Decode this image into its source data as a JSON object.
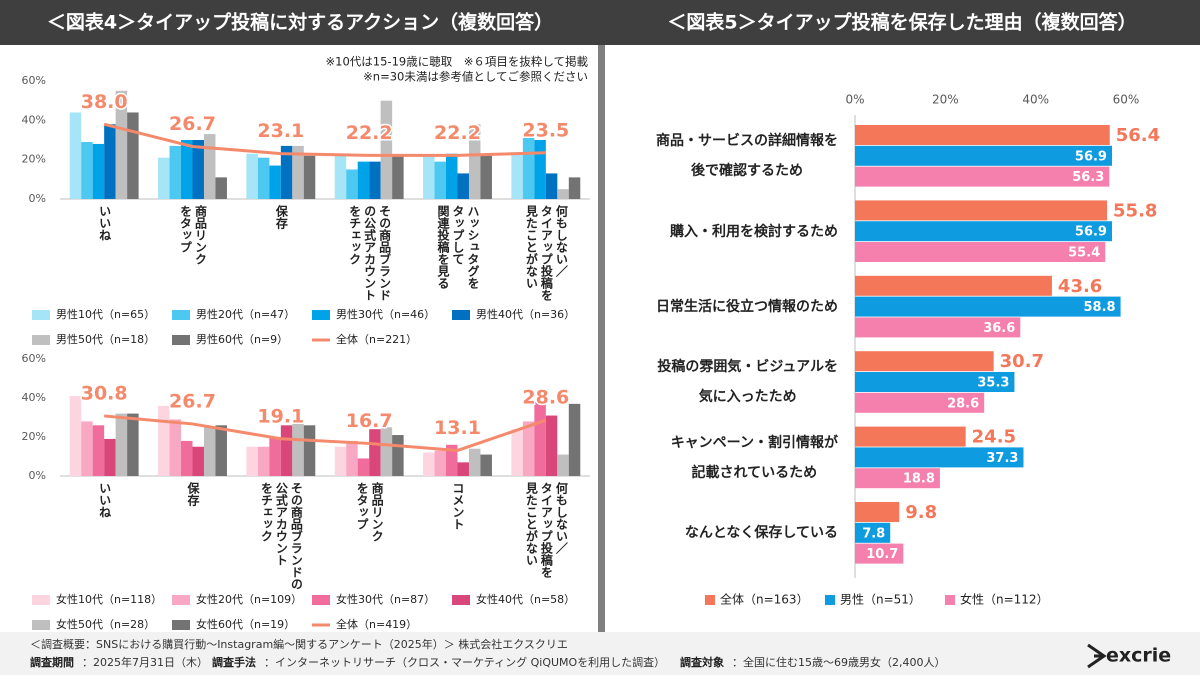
{
  "chart_data": [
    {
      "type": "bar",
      "title": "＜図表4＞タイアップ投稿に対するアクション（複数回答）",
      "notes": [
        "※10代は15-19歳に聴取　※６項目を抜粋して掲載",
        "※n=30未満は参考値としてご参照ください"
      ],
      "categories": [
        "いいね",
        "商品リンク\nをタップ",
        "保存",
        "その商品ブランド\nの公式アカウント\nをチェック",
        "ハッシュタグを\nタップして\n関連投稿を見る",
        "何もしない／\nタイアップ投稿を\n見たことがない"
      ],
      "ylim": [
        0,
        60
      ],
      "yticks": [
        {
          "value": 0,
          "label": "0%"
        },
        {
          "value": 20,
          "label": "20%"
        },
        {
          "value": 40,
          "label": "40%"
        },
        {
          "value": 60,
          "label": "60%"
        }
      ],
      "series": [
        {
          "name": "男性10代（n=65）",
          "color": "#a6e4f7",
          "values": [
            44,
            21,
            23,
            22,
            22,
            23
          ]
        },
        {
          "name": "男性20代（n=47）",
          "color": "#4dc8f0",
          "values": [
            29,
            27,
            21,
            15,
            19,
            33
          ]
        },
        {
          "name": "男性30代（n=46）",
          "color": "#00a2e8",
          "values": [
            28,
            30,
            17,
            19,
            23,
            30
          ]
        },
        {
          "name": "男性40代（n=36）",
          "color": "#0070c0",
          "values": [
            38,
            30,
            27,
            19,
            13,
            13
          ]
        },
        {
          "name": "男性50代（n=18）",
          "color": "#bfbfbf",
          "values": [
            55,
            33,
            27,
            50,
            38,
            5
          ]
        },
        {
          "name": "男性60代（n=9）",
          "color": "#737373",
          "values": [
            44,
            11,
            22,
            22,
            22,
            11
          ]
        },
        {
          "name": "全体（n=221）",
          "color": "#f4896b",
          "type": "line",
          "values": [
            38.0,
            26.7,
            23.1,
            22.2,
            22.2,
            23.5
          ],
          "value_labels": [
            "38.0",
            "26.7",
            "23.1",
            "22.2",
            "22.2",
            "23.5"
          ]
        }
      ]
    },
    {
      "type": "bar",
      "categories": [
        "いいね",
        "保存",
        "その商品ブランドの\n公式アカウント\nをチェック",
        "商品リンク\nをタップ",
        "コメント",
        "何もしない／\nタイアップ投稿を\n見たことがない"
      ],
      "ylim": [
        0,
        60
      ],
      "yticks": [
        {
          "value": 0,
          "label": "0%"
        },
        {
          "value": 20,
          "label": "20%"
        },
        {
          "value": 40,
          "label": "40%"
        },
        {
          "value": 60,
          "label": "60%"
        }
      ],
      "series": [
        {
          "name": "女性10代（n=118）",
          "color": "#fcd5e0",
          "values": [
            41,
            36,
            15,
            15,
            12,
            24
          ]
        },
        {
          "name": "女性20代（n=109）",
          "color": "#f9a8c4",
          "values": [
            28,
            29,
            15,
            18,
            13,
            28
          ]
        },
        {
          "name": "女性30代（n=87）",
          "color": "#f06c9b",
          "values": [
            26,
            18,
            20,
            9,
            16,
            38
          ]
        },
        {
          "name": "女性40代（n=58）",
          "color": "#d9467a",
          "values": [
            19,
            15,
            26,
            24,
            7,
            31
          ]
        },
        {
          "name": "女性50代（n=28）",
          "color": "#bfbfbf",
          "values": [
            32,
            25,
            29,
            25,
            14,
            11
          ]
        },
        {
          "name": "女性60代（n=19）",
          "color": "#737373",
          "values": [
            32,
            26,
            26,
            21,
            11,
            37
          ]
        },
        {
          "name": "全体（n=419）",
          "color": "#f4896b",
          "type": "line",
          "values": [
            30.8,
            26.7,
            19.1,
            16.7,
            13.1,
            28.6
          ],
          "value_labels": [
            "30.8",
            "26.7",
            "19.1",
            "16.7",
            "13.1",
            "28.6"
          ]
        }
      ]
    },
    {
      "type": "barh",
      "title": "＜図表5＞タイアップ投稿を保存した理由（複数回答）",
      "categories": [
        "商品・サービスの詳細情報を\n後で確認するため",
        "購入・利用を検討するため",
        "日常生活に役立つ情報のため",
        "投稿の雰囲気・ビジュアルを\n気に入ったため",
        "キャンペーン・割引情報が\n記載されているため",
        "なんとなく保存している"
      ],
      "xlim": [
        0,
        60
      ],
      "xticks": [
        {
          "value": 0,
          "label": "0%"
        },
        {
          "value": 20,
          "label": "20%"
        },
        {
          "value": 40,
          "label": "40%"
        },
        {
          "value": 60,
          "label": "60%"
        }
      ],
      "series": [
        {
          "name": "全体（n=163）",
          "color": "#f4775a",
          "values": [
            56.4,
            55.8,
            43.6,
            30.7,
            24.5,
            9.8
          ]
        },
        {
          "name": "男性（n=51）",
          "color": "#0e9be0",
          "values": [
            56.9,
            56.9,
            58.8,
            35.3,
            37.3,
            7.8
          ]
        },
        {
          "name": "女性（n=112）",
          "color": "#f57fad",
          "values": [
            56.3,
            55.4,
            36.6,
            28.6,
            18.8,
            10.7
          ]
        }
      ]
    }
  ],
  "footer": {
    "summary": "＜調査概要：SNSにおける購買行動～Instagram編～関するアンケート（2025年）＞ 株式会社エクスクリエ",
    "period_label": "調査期間",
    "period": "：2025年7月31日（木）",
    "method_label": "調査手法",
    "method": "：インターネットリサーチ（クロス・マーケティング QiQUMOを利用した調査）",
    "target_label": "調査対象",
    "target": "：全国に住む15歳～69歳男女（2,400人）"
  },
  "logo": "excrie"
}
